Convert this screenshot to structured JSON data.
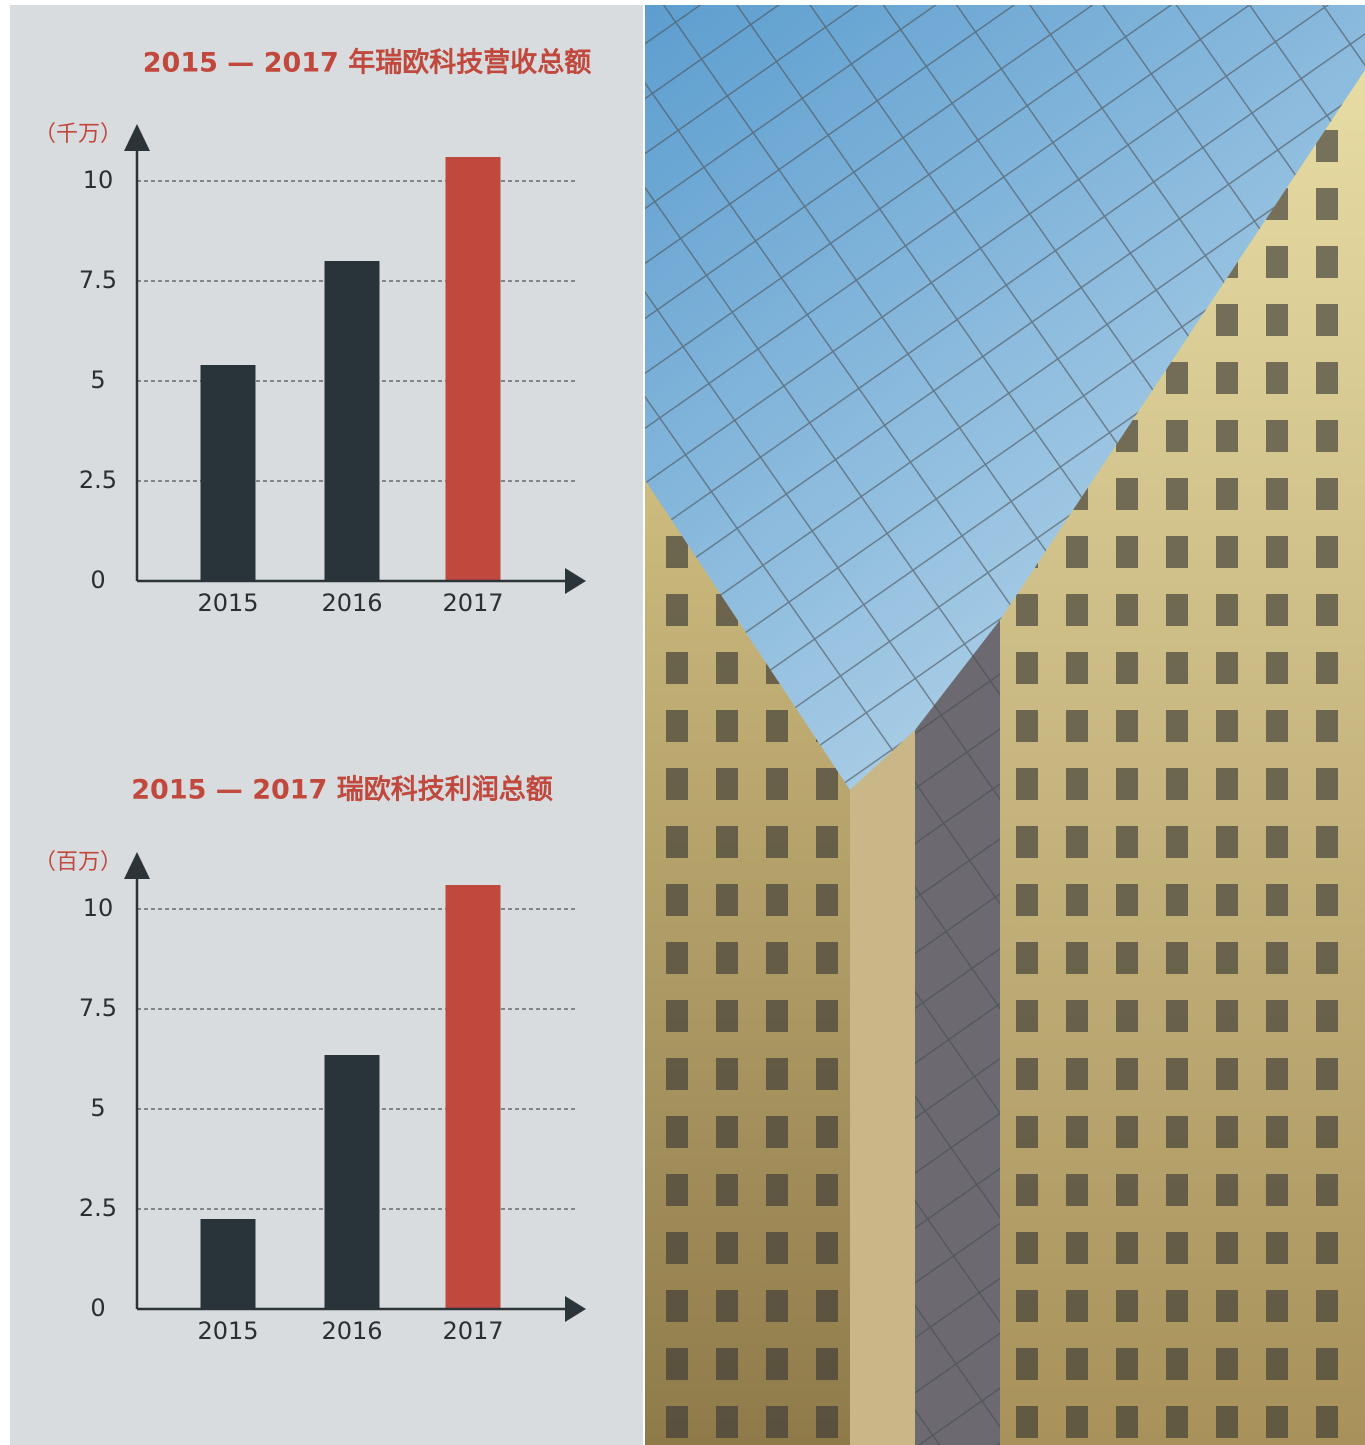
{
  "chart_data": [
    {
      "type": "bar",
      "title": "2015 — 2017 年瑞欧科技营收总额",
      "y_label": "（千万）",
      "categories": [
        "2015",
        "2016",
        "2017"
      ],
      "values": [
        5.4,
        8.0,
        10.6
      ],
      "colors": [
        "#29333a",
        "#29333a",
        "#c0483c"
      ],
      "ylim": [
        0,
        11
      ],
      "yticks": [
        0,
        2.5,
        5,
        7.5,
        10
      ],
      "grid": true
    },
    {
      "type": "bar",
      "title": "2015 — 2017 瑞欧科技利润总额",
      "y_label": "（百万）",
      "categories": [
        "2015",
        "2016",
        "2017"
      ],
      "values": [
        2.25,
        6.35,
        10.6
      ],
      "colors": [
        "#29333a",
        "#29333a",
        "#c0483c"
      ],
      "ylim": [
        0,
        11
      ],
      "yticks": [
        0,
        2.5,
        5,
        7.5,
        10
      ],
      "grid": true
    }
  ]
}
